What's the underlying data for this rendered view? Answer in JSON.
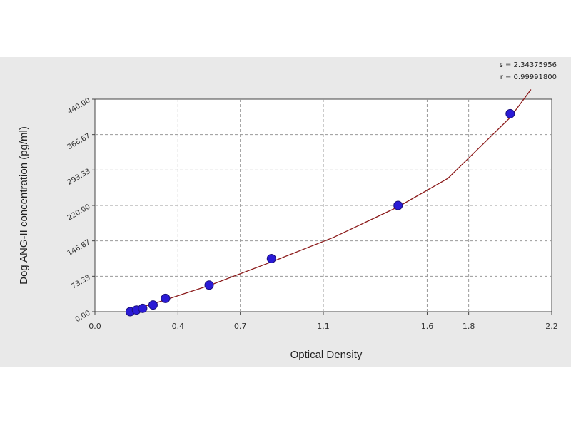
{
  "chart_data": {
    "type": "scatter",
    "title": "",
    "xlabel": "Optical Density",
    "ylabel": "Dog ANG-II concentration (pg/ml)",
    "xlim": [
      0.0,
      2.2
    ],
    "ylim": [
      0.0,
      440.0
    ],
    "xticks": [
      0.0,
      0.4,
      0.7,
      1.1,
      1.6,
      1.8,
      2.2
    ],
    "xtick_labels": [
      "0.0",
      "0.4",
      "0.7",
      "1.1",
      "1.6",
      "1.8",
      "2.2"
    ],
    "yticks": [
      0,
      73.33,
      146.67,
      220.0,
      293.33,
      366.67,
      440.0
    ],
    "ytick_labels": [
      "0.00",
      "73.33",
      "146.67",
      "220.00",
      "293.33",
      "366.67",
      "440.00"
    ],
    "grid": true,
    "annotations": [
      "s = 2.34375956",
      "r = 0.99991800"
    ],
    "series": [
      {
        "marker_color": "#2a1ad6",
        "points": [
          {
            "x": 0.17,
            "y": 0.0
          },
          {
            "x": 0.2,
            "y": 3.4
          },
          {
            "x": 0.23,
            "y": 6.9
          },
          {
            "x": 0.28,
            "y": 13.8
          },
          {
            "x": 0.34,
            "y": 27.5
          },
          {
            "x": 0.55,
            "y": 55.0
          },
          {
            "x": 0.85,
            "y": 110.0
          },
          {
            "x": 1.46,
            "y": 220.0
          },
          {
            "x": 2.0,
            "y": 410.0
          }
        ]
      }
    ],
    "fit_curve": {
      "color": "#8b1a1a",
      "points": [
        {
          "x": 0.15,
          "y": 0
        },
        {
          "x": 0.3,
          "y": 19
        },
        {
          "x": 0.55,
          "y": 54
        },
        {
          "x": 0.85,
          "y": 103
        },
        {
          "x": 1.15,
          "y": 154
        },
        {
          "x": 1.46,
          "y": 217
        },
        {
          "x": 1.7,
          "y": 276
        },
        {
          "x": 2.0,
          "y": 402
        },
        {
          "x": 2.1,
          "y": 460
        }
      ]
    },
    "colors": {
      "background": "#e9e9e9",
      "plot_background": "#ffffff",
      "grid": "#9a9a9a",
      "curve": "#8b1a1a",
      "markers": "#2a1ad6"
    }
  }
}
